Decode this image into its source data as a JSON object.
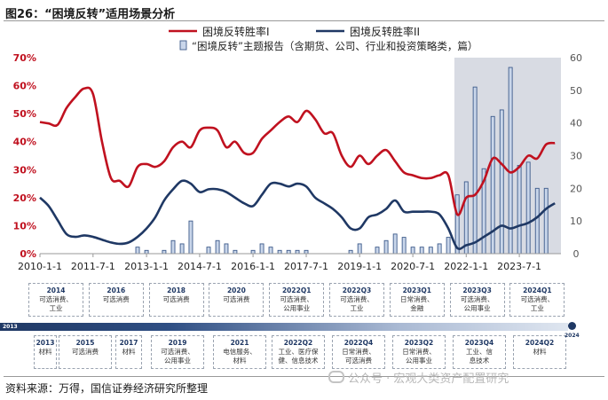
{
  "figure": {
    "title": "图26：“困境反转”适用场景分析",
    "source": "资料来源：万得，国信证券经济研究所整理",
    "watermark": "公众号 · 宏观大类资产配置研究"
  },
  "colors": {
    "series1": "#c0111f",
    "series2": "#1f3864",
    "bars_fill": "#c9d6ea",
    "bars_stroke": "#3d5a8a",
    "highlight": "#d8dbe3"
  },
  "chart_data": {
    "type": "line+bar",
    "x_tick_labels": [
      "2010-1-1",
      "2011-7-1",
      "2013-1-1",
      "2014-7-1",
      "2016-1-1",
      "2017-7-1",
      "2019-1-1",
      "2020-7-1",
      "2022-1-1",
      "2023-7-1"
    ],
    "x_tick_dates": [
      "2010-01-01",
      "2011-07-01",
      "2013-01-01",
      "2014-07-01",
      "2016-01-01",
      "2017-07-01",
      "2019-01-01",
      "2020-07-01",
      "2022-01-01",
      "2023-07-01"
    ],
    "x_range": [
      "2010-01-01",
      "2024-09-01"
    ],
    "left_axis": {
      "ticks": [
        "0%",
        "10%",
        "20%",
        "30%",
        "40%",
        "50%",
        "60%",
        "70%"
      ],
      "range": [
        0,
        0.7
      ]
    },
    "right_axis": {
      "ticks": [
        "0",
        "10",
        "20",
        "30",
        "40",
        "50",
        "60"
      ],
      "range": [
        0,
        60
      ]
    },
    "highlight_range": [
      "2021-09-01",
      "2024-09-01"
    ],
    "legend": {
      "series1": "困境反转胜率I",
      "series2": "困境反转胜率II",
      "bars": "“困境反转”主题报告（含期货、公司、行业和投资策略类，篇）"
    },
    "series": [
      {
        "name": "困境反转胜率I",
        "axis": "left",
        "points": [
          [
            "2010-01-01",
            0.47
          ],
          [
            "2010-04-01",
            0.465
          ],
          [
            "2010-07-01",
            0.46
          ],
          [
            "2010-10-01",
            0.52
          ],
          [
            "2011-01-01",
            0.56
          ],
          [
            "2011-04-01",
            0.59
          ],
          [
            "2011-07-01",
            0.57
          ],
          [
            "2011-10-01",
            0.4
          ],
          [
            "2012-01-01",
            0.27
          ],
          [
            "2012-04-01",
            0.26
          ],
          [
            "2012-07-01",
            0.24
          ],
          [
            "2012-10-01",
            0.31
          ],
          [
            "2013-01-01",
            0.32
          ],
          [
            "2013-04-01",
            0.31
          ],
          [
            "2013-07-01",
            0.33
          ],
          [
            "2013-10-01",
            0.38
          ],
          [
            "2014-01-01",
            0.4
          ],
          [
            "2014-04-01",
            0.38
          ],
          [
            "2014-07-01",
            0.44
          ],
          [
            "2014-10-01",
            0.45
          ],
          [
            "2015-01-01",
            0.44
          ],
          [
            "2015-04-01",
            0.38
          ],
          [
            "2015-07-01",
            0.4
          ],
          [
            "2015-10-01",
            0.36
          ],
          [
            "2016-01-01",
            0.36
          ],
          [
            "2016-04-01",
            0.41
          ],
          [
            "2016-07-01",
            0.44
          ],
          [
            "2016-10-01",
            0.47
          ],
          [
            "2017-01-01",
            0.49
          ],
          [
            "2017-04-01",
            0.47
          ],
          [
            "2017-07-01",
            0.51
          ],
          [
            "2017-10-01",
            0.48
          ],
          [
            "2018-01-01",
            0.43
          ],
          [
            "2018-04-01",
            0.43
          ],
          [
            "2018-07-01",
            0.35
          ],
          [
            "2018-10-01",
            0.31
          ],
          [
            "2019-01-01",
            0.35
          ],
          [
            "2019-04-01",
            0.32
          ],
          [
            "2019-07-01",
            0.35
          ],
          [
            "2019-10-01",
            0.37
          ],
          [
            "2020-01-01",
            0.33
          ],
          [
            "2020-04-01",
            0.29
          ],
          [
            "2020-07-01",
            0.28
          ],
          [
            "2020-10-01",
            0.27
          ],
          [
            "2021-01-01",
            0.27
          ],
          [
            "2021-04-01",
            0.28
          ],
          [
            "2021-07-01",
            0.28
          ],
          [
            "2021-10-01",
            0.14
          ],
          [
            "2022-01-01",
            0.2
          ],
          [
            "2022-04-01",
            0.21
          ],
          [
            "2022-07-01",
            0.26
          ],
          [
            "2022-10-01",
            0.34
          ],
          [
            "2023-01-01",
            0.32
          ],
          [
            "2023-04-01",
            0.29
          ],
          [
            "2023-07-01",
            0.31
          ],
          [
            "2023-10-01",
            0.35
          ],
          [
            "2024-01-01",
            0.34
          ],
          [
            "2024-04-01",
            0.39
          ],
          [
            "2024-07-01",
            0.395
          ]
        ]
      },
      {
        "name": "困境反转胜率II",
        "axis": "left",
        "points": [
          [
            "2010-01-01",
            0.2
          ],
          [
            "2010-04-01",
            0.17
          ],
          [
            "2010-07-01",
            0.12
          ],
          [
            "2010-10-01",
            0.07
          ],
          [
            "2011-01-01",
            0.06
          ],
          [
            "2011-04-01",
            0.065
          ],
          [
            "2011-07-01",
            0.06
          ],
          [
            "2011-10-01",
            0.05
          ],
          [
            "2012-01-01",
            0.04
          ],
          [
            "2012-04-01",
            0.035
          ],
          [
            "2012-07-01",
            0.04
          ],
          [
            "2012-10-01",
            0.06
          ],
          [
            "2013-01-01",
            0.09
          ],
          [
            "2013-04-01",
            0.13
          ],
          [
            "2013-07-01",
            0.19
          ],
          [
            "2013-10-01",
            0.23
          ],
          [
            "2014-01-01",
            0.26
          ],
          [
            "2014-04-01",
            0.25
          ],
          [
            "2014-07-01",
            0.22
          ],
          [
            "2014-10-01",
            0.23
          ],
          [
            "2015-01-01",
            0.23
          ],
          [
            "2015-04-01",
            0.22
          ],
          [
            "2015-07-01",
            0.2
          ],
          [
            "2015-10-01",
            0.18
          ],
          [
            "2016-01-01",
            0.17
          ],
          [
            "2016-04-01",
            0.21
          ],
          [
            "2016-07-01",
            0.25
          ],
          [
            "2016-10-01",
            0.25
          ],
          [
            "2017-01-01",
            0.24
          ],
          [
            "2017-04-01",
            0.25
          ],
          [
            "2017-07-01",
            0.24
          ],
          [
            "2017-10-01",
            0.2
          ],
          [
            "2018-01-01",
            0.18
          ],
          [
            "2018-04-01",
            0.16
          ],
          [
            "2018-07-01",
            0.13
          ],
          [
            "2018-10-01",
            0.09
          ],
          [
            "2019-01-01",
            0.09
          ],
          [
            "2019-04-01",
            0.13
          ],
          [
            "2019-07-01",
            0.14
          ],
          [
            "2019-10-01",
            0.16
          ],
          [
            "2020-01-01",
            0.19
          ],
          [
            "2020-04-01",
            0.15
          ],
          [
            "2020-07-01",
            0.15
          ],
          [
            "2020-10-01",
            0.15
          ],
          [
            "2021-01-01",
            0.15
          ],
          [
            "2021-04-01",
            0.14
          ],
          [
            "2021-07-01",
            0.09
          ],
          [
            "2021-10-01",
            0.02
          ],
          [
            "2022-01-01",
            0.03
          ],
          [
            "2022-04-01",
            0.04
          ],
          [
            "2022-07-01",
            0.06
          ],
          [
            "2022-10-01",
            0.08
          ],
          [
            "2023-01-01",
            0.1
          ],
          [
            "2023-04-01",
            0.09
          ],
          [
            "2023-07-01",
            0.1
          ],
          [
            "2023-10-01",
            0.11
          ],
          [
            "2024-01-01",
            0.13
          ],
          [
            "2024-04-01",
            0.16
          ],
          [
            "2024-07-01",
            0.18
          ]
        ]
      }
    ],
    "bars": {
      "name": "“困境反转”主题报告（含期货、公司、行业和投资策略类，篇）",
      "axis": "right",
      "points": [
        [
          "2012-10-01",
          2
        ],
        [
          "2013-01-01",
          1
        ],
        [
          "2013-07-01",
          1
        ],
        [
          "2013-10-01",
          4
        ],
        [
          "2014-01-01",
          3
        ],
        [
          "2014-04-01",
          10
        ],
        [
          "2014-10-01",
          2
        ],
        [
          "2015-01-01",
          4
        ],
        [
          "2015-04-01",
          3
        ],
        [
          "2015-07-01",
          1
        ],
        [
          "2016-01-01",
          1
        ],
        [
          "2016-04-01",
          3
        ],
        [
          "2016-07-01",
          2
        ],
        [
          "2016-10-01",
          1
        ],
        [
          "2017-01-01",
          1
        ],
        [
          "2017-04-01",
          1
        ],
        [
          "2017-07-01",
          1
        ],
        [
          "2018-10-01",
          1
        ],
        [
          "2019-01-01",
          3
        ],
        [
          "2019-07-01",
          2
        ],
        [
          "2019-10-01",
          4
        ],
        [
          "2020-01-01",
          6
        ],
        [
          "2020-04-01",
          5
        ],
        [
          "2020-07-01",
          2
        ],
        [
          "2020-10-01",
          2
        ],
        [
          "2021-01-01",
          2
        ],
        [
          "2021-04-01",
          3
        ],
        [
          "2021-07-01",
          5
        ],
        [
          "2021-10-01",
          18
        ],
        [
          "2022-01-01",
          22
        ],
        [
          "2022-04-01",
          51
        ],
        [
          "2022-07-01",
          26
        ],
        [
          "2022-10-01",
          42
        ],
        [
          "2023-01-01",
          44
        ],
        [
          "2023-04-01",
          57
        ],
        [
          "2023-07-01",
          27
        ],
        [
          "2023-10-01",
          28
        ],
        [
          "2024-01-01",
          20
        ],
        [
          "2024-04-01",
          20
        ]
      ]
    }
  },
  "timeline": {
    "start_label": "2013",
    "end_label": "2024",
    "top_boxes": [
      {
        "year": "2014",
        "text": "可选消费、\n工业"
      },
      {
        "year": "2016",
        "text": "可选消费"
      },
      {
        "year": "2018",
        "text": "可选消费"
      },
      {
        "year": "2020",
        "text": "可选消费"
      },
      {
        "year": "2022Q1",
        "text": "可选消费、\n公用事业"
      },
      {
        "year": "2022Q3",
        "text": "可选消费、\n工业"
      },
      {
        "year": "2023Q1",
        "text": "日常消费、\n金融"
      },
      {
        "year": "2023Q3",
        "text": "可选消费、\n公用事业"
      },
      {
        "year": "2024Q1",
        "text": "可选消费、\n工业"
      }
    ],
    "bottom_boxes": [
      {
        "year": "2013",
        "text": "材料"
      },
      {
        "year": "2015",
        "text": "可选消费"
      },
      {
        "year": "2017",
        "text": "材料"
      },
      {
        "year": "2019",
        "text": "可选消费、\n公用事业"
      },
      {
        "year": "2021",
        "text": "电信服务、\n材料"
      },
      {
        "year": "2022Q2",
        "text": "工业、医疗保\n健、信息技术"
      },
      {
        "year": "2022Q4",
        "text": "日常消费、\n可选消费"
      },
      {
        "year": "2023Q2",
        "text": "日常消费、\n公用事业"
      },
      {
        "year": "2023Q4",
        "text": "工业、信\n息技术"
      },
      {
        "year": "2024Q2",
        "text": "材料"
      }
    ]
  }
}
